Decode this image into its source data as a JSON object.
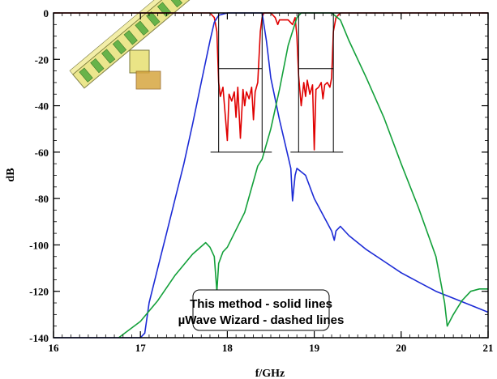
{
  "chart_data": {
    "type": "line",
    "xlabel": "f/GHz",
    "ylabel": "dB",
    "xlim": [
      16,
      21
    ],
    "ylim": [
      -140,
      0
    ],
    "x_ticks": [
      16,
      17,
      18,
      19,
      20,
      21
    ],
    "y_ticks": [
      0,
      -20,
      -40,
      -60,
      -80,
      -100,
      -120,
      -140
    ],
    "grid": false,
    "legend": {
      "placement": "bottom-center",
      "lines": [
        "This method - solid lines",
        "µWave Wizard - dashed lines"
      ]
    },
    "colors": {
      "s11": "#e00000",
      "s21_blue": "#1c2bd6",
      "s31_green": "#13a03a",
      "mask": "#000000"
    },
    "series": [
      {
        "color": "#e00000",
        "style": "solid",
        "x": [
          16,
          17.8,
          17.85,
          17.88,
          17.9,
          17.92,
          17.95,
          18.0,
          18.02,
          18.05,
          18.08,
          18.1,
          18.12,
          18.15,
          18.18,
          18.2,
          18.22,
          18.25,
          18.28,
          18.3,
          18.32,
          18.35,
          18.38,
          18.4,
          18.42,
          18.45,
          18.5,
          18.55,
          18.58,
          18.6,
          18.7,
          18.75,
          18.78,
          18.8,
          18.82,
          18.85,
          18.88,
          18.9,
          18.92,
          18.95,
          18.98,
          19.0,
          19.02,
          19.05,
          19.08,
          19.1,
          19.12,
          19.15,
          19.18,
          19.2,
          19.22,
          19.25,
          19.3,
          21
        ],
        "y": [
          0,
          0,
          -2,
          -8,
          -30,
          -36,
          -32,
          -55,
          -35,
          -38,
          -34,
          -45,
          -32,
          -54,
          -33,
          -40,
          -34,
          -37,
          -32,
          -46,
          -34,
          -30,
          -8,
          -2,
          0,
          0,
          0,
          -2,
          -5,
          -3,
          -3,
          -5,
          -2,
          -10,
          -27,
          -40,
          -30,
          -36,
          -29,
          -35,
          -31,
          -59,
          -33,
          -32,
          -30,
          -37,
          -31,
          -30,
          -32,
          -28,
          -8,
          -2,
          0,
          0
        ]
      },
      {
        "color": "#1c2bd6",
        "style": "solid",
        "x": [
          16,
          17.0,
          17.05,
          17.1,
          17.2,
          17.3,
          17.4,
          17.5,
          17.6,
          17.7,
          17.8,
          17.85,
          17.9,
          18.0,
          18.4,
          18.45,
          18.5,
          18.6,
          18.7,
          18.73,
          18.75,
          18.78,
          18.8,
          18.9,
          19.0,
          19.1,
          19.2,
          19.23,
          19.25,
          19.3,
          19.4,
          19.6,
          19.8,
          20.0,
          20.2,
          20.4,
          20.6,
          20.8,
          21.0
        ],
        "y": [
          -140,
          -140,
          -138,
          -125,
          -110,
          -95,
          -80,
          -65,
          -48,
          -30,
          -12,
          -4,
          -1,
          0,
          0,
          -12,
          -28,
          -46,
          -62,
          -67,
          -81,
          -70,
          -67,
          -70,
          -80,
          -87,
          -94,
          -98,
          -94,
          -92,
          -96,
          -102,
          -107,
          -112,
          -116,
          -120,
          -123,
          -126,
          -129
        ]
      },
      {
        "color": "#13a03a",
        "style": "solid",
        "x": [
          16.75,
          17.0,
          17.2,
          17.4,
          17.6,
          17.75,
          17.8,
          17.85,
          17.88,
          17.9,
          17.95,
          18.0,
          18.2,
          18.35,
          18.4,
          18.5,
          18.6,
          18.7,
          18.8,
          18.85,
          19.2,
          19.3,
          19.4,
          19.6,
          19.8,
          20.0,
          20.2,
          20.4,
          20.5,
          20.53,
          20.6,
          20.7,
          20.8,
          20.9,
          21.0
        ],
        "y": [
          -140,
          -133,
          -124,
          -113,
          -104,
          -99,
          -101,
          -105,
          -120,
          -108,
          -103,
          -101,
          -86,
          -66,
          -63,
          -50,
          -33,
          -14,
          -2,
          0,
          0,
          -3,
          -12,
          -28,
          -45,
          -65,
          -84,
          -105,
          -125,
          -135,
          -130,
          -124,
          -120,
          -119,
          -119
        ]
      }
    ],
    "mask_boxes": [
      {
        "x1": 17.9,
        "x2": 18.4,
        "y_top": 0,
        "y_mid": -24,
        "y_bottom": -60
      },
      {
        "x1": 18.82,
        "x2": 19.22,
        "y_top": 0,
        "y_mid": -24,
        "y_bottom": -60
      }
    ]
  }
}
